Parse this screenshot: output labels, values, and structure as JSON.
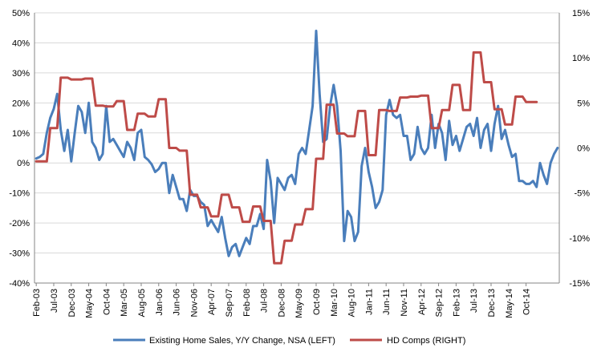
{
  "chart_data": {
    "type": "line",
    "x_tick_labels": [
      "Feb-03",
      "Jul-03",
      "Dec-03",
      "May-04",
      "Oct-04",
      "Mar-05",
      "Aug-05",
      "Jan-06",
      "Jun-06",
      "Nov-06",
      "Apr-07",
      "Sep-07",
      "Feb-08",
      "Jul-08",
      "Dec-08",
      "May-09",
      "Oct-09",
      "Mar-10",
      "Aug-10",
      "Jan-11",
      "Jun-11",
      "Nov-11",
      "Apr-12",
      "Sep-12",
      "Feb-13",
      "Jul-13",
      "Dec-13",
      "May-14",
      "Oct-14"
    ],
    "left_axis": {
      "ylim": [
        -40,
        50
      ],
      "step": 10,
      "tick_labels": [
        "-40%",
        "-30%",
        "-20%",
        "-10%",
        "0%",
        "10%",
        "20%",
        "30%",
        "40%",
        "50%"
      ]
    },
    "right_axis": {
      "ylim": [
        -15,
        15
      ],
      "step": 5,
      "tick_labels": [
        "-15%",
        "-10%",
        "-5%",
        "0%",
        "5%",
        "10%",
        "15%"
      ]
    },
    "grid": true,
    "legend_position": "bottom",
    "series": [
      {
        "name": "Existing Home Sales, Y/Y Change, NSA (LEFT)",
        "axis": "left",
        "color": "#4a7ebb",
        "start": "Feb-03",
        "values": [
          1.5,
          2,
          3,
          10,
          15,
          18,
          23,
          11,
          4,
          11,
          0.5,
          10,
          19,
          17,
          10,
          20,
          7,
          5,
          1,
          3,
          19,
          7,
          8,
          6,
          4,
          2,
          7,
          5,
          1,
          10,
          11,
          2,
          1,
          -0.5,
          -3,
          -2,
          0,
          0,
          -10,
          -4,
          -8,
          -12,
          -12,
          -16,
          -9,
          -11,
          -11,
          -13,
          -14,
          -21,
          -19,
          -21,
          -23,
          -18,
          -25,
          -31,
          -28,
          -27,
          -31,
          -28,
          -25,
          -27,
          -21,
          -21,
          -17,
          -22,
          1,
          -6,
          -20,
          -5,
          -7,
          -9,
          -5,
          -4,
          -7,
          3,
          5,
          3,
          11,
          19,
          44,
          23,
          7,
          8,
          19,
          26,
          19,
          4,
          -26,
          -16,
          -18,
          -26,
          -23,
          -1,
          5,
          -3,
          -8,
          -15,
          -13,
          -9,
          16,
          21,
          16,
          15,
          16,
          9,
          9,
          1,
          3,
          12,
          5,
          3,
          5,
          16,
          5,
          13,
          10,
          1,
          14,
          6,
          9,
          4,
          8,
          12,
          13,
          9,
          15,
          5,
          11,
          13,
          4,
          13,
          19,
          8,
          11,
          6,
          2,
          3,
          -6,
          -6,
          -7,
          -7,
          -6,
          -8,
          0,
          -4,
          -7,
          0,
          3,
          5
        ]
      },
      {
        "name": "HD Comps (RIGHT)",
        "axis": "right",
        "color": "#be4b48",
        "start": "Feb-03",
        "values": [
          -1.5,
          -1.5,
          -1.5,
          -1.5,
          2.2,
          2.2,
          2.2,
          7.8,
          7.8,
          7.8,
          7.6,
          7.6,
          7.6,
          7.6,
          7.7,
          7.7,
          7.7,
          4.7,
          4.7,
          4.7,
          4.6,
          4.6,
          4.6,
          5.2,
          5.2,
          5.2,
          2,
          2,
          2,
          3.8,
          3.8,
          3.8,
          3.5,
          3.5,
          3.5,
          5.4,
          5.4,
          5.4,
          0,
          0,
          0,
          -0.3,
          -0.3,
          -0.3,
          -5.2,
          -5.2,
          -5.2,
          -6.6,
          -6.6,
          -6.6,
          -7.6,
          -7.6,
          -7.6,
          -5.2,
          -5.2,
          -5.2,
          -6.6,
          -6.6,
          -6.6,
          -8.2,
          -8.2,
          -8.2,
          -6.5,
          -6.5,
          -6.5,
          -8.1,
          -8.1,
          -8.1,
          -12.8,
          -12.8,
          -12.8,
          -10.3,
          -10.3,
          -10.3,
          -8.5,
          -8.5,
          -8.5,
          -6.8,
          -6.8,
          -6.8,
          -1.2,
          -1.2,
          -1.2,
          4.8,
          4.8,
          4.8,
          1.6,
          1.6,
          1.6,
          1.3,
          1.3,
          1.3,
          4.1,
          4.1,
          4.1,
          -0.8,
          -0.8,
          -0.8,
          4.2,
          4.2,
          4.2,
          4.1,
          4.1,
          4.1,
          5.6,
          5.6,
          5.6,
          5.7,
          5.7,
          5.7,
          5.8,
          5.8,
          5.8,
          2.2,
          2.2,
          2.2,
          4.2,
          4.2,
          4.2,
          7,
          7,
          7,
          4.2,
          4.2,
          4.2,
          10.6,
          10.6,
          10.6,
          7.3,
          7.3,
          7.3,
          4.3,
          4.3,
          4.3,
          2.6,
          2.6,
          2.6,
          5.7,
          5.7,
          5.7,
          5.1,
          5.1,
          5.1,
          5.1
        ]
      }
    ]
  }
}
